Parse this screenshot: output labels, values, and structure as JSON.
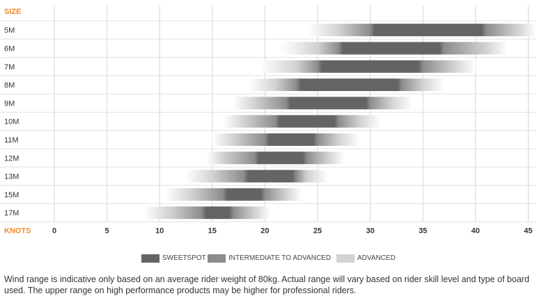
{
  "chart_data": {
    "type": "bar",
    "subtype": "floating-range",
    "orientation": "horizontal",
    "ylabel": "SIZE",
    "xlabel": "KNOTS",
    "xlim": [
      0,
      46
    ],
    "xticks": [
      0,
      5,
      10,
      15,
      20,
      25,
      30,
      35,
      40,
      45
    ],
    "grid": "vertical",
    "legend_position": "bottom-center",
    "categories": [
      "5M",
      "6M",
      "7M",
      "8M",
      "9M",
      "10M",
      "11M",
      "12M",
      "13M",
      "15M",
      "17M"
    ],
    "series": [
      {
        "name": "SWEETSPOT",
        "color": "#646464",
        "ranges": [
          [
            30,
            41
          ],
          [
            27,
            37
          ],
          [
            25,
            35
          ],
          [
            23,
            33
          ],
          [
            22,
            30
          ],
          [
            21,
            27
          ],
          [
            20,
            25
          ],
          [
            19,
            24
          ],
          [
            18,
            23
          ],
          [
            16,
            20
          ],
          [
            14,
            17
          ]
        ]
      },
      {
        "name": "INTERMEDIATE TO ADVANCED",
        "color": "#8c8c8c",
        "ranges": [
          [
            27,
            44
          ],
          [
            25,
            41
          ],
          [
            23,
            38
          ],
          [
            21,
            35
          ],
          [
            19,
            32
          ],
          [
            18,
            29
          ],
          [
            17,
            27
          ],
          [
            16,
            26
          ],
          [
            15,
            24
          ],
          [
            13,
            22
          ],
          [
            11,
            19
          ]
        ]
      },
      {
        "name": "ADVANCED",
        "color": "#d2d2d2",
        "ranges": [
          [
            24,
            46
          ],
          [
            21.5,
            43
          ],
          [
            19.5,
            40
          ],
          [
            18.5,
            37
          ],
          [
            17,
            34
          ],
          [
            16,
            31
          ],
          [
            15,
            29
          ],
          [
            14.5,
            27.5
          ],
          [
            12.5,
            26
          ],
          [
            10.5,
            23.5
          ],
          [
            8.5,
            20.5
          ]
        ]
      }
    ]
  },
  "colors": {
    "accent": "#f28c28",
    "grid": "#d6d6d6"
  },
  "footnote": "Wind range is indicative only based on an average rider weight of 80kg. Actual range will vary based on rider skill level and type of board used. The upper range on high performance products may be higher for professional riders."
}
